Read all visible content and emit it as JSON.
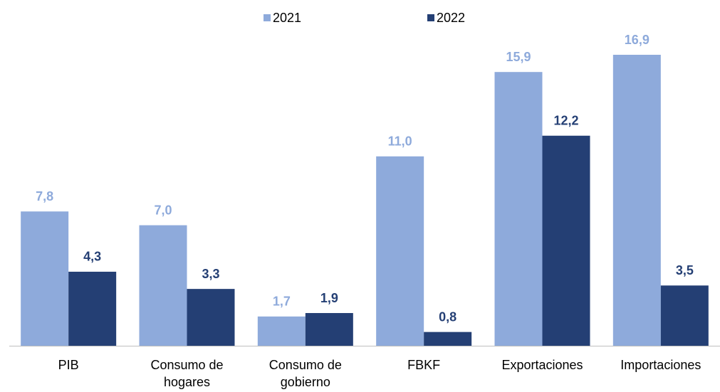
{
  "chart_data": {
    "type": "bar",
    "categories": [
      "PIB",
      "Consumo de hogares",
      "Consumo de gobierno",
      "FBKF",
      "Exportaciones",
      "Importaciones"
    ],
    "series": [
      {
        "name": "2021",
        "color": "#8eaadb",
        "values": [
          7.8,
          7.0,
          1.7,
          11.0,
          15.9,
          16.9
        ],
        "value_labels": [
          "7,8",
          "7,0",
          "1,7",
          "11,0",
          "15,9",
          "16,9"
        ]
      },
      {
        "name": "2022",
        "color": "#243f74",
        "values": [
          4.3,
          3.3,
          1.9,
          0.8,
          12.2,
          3.5
        ],
        "value_labels": [
          "4,3",
          "3,3",
          "1,9",
          "0,8",
          "12,2",
          "3,5"
        ]
      }
    ],
    "legend": "top"
  }
}
